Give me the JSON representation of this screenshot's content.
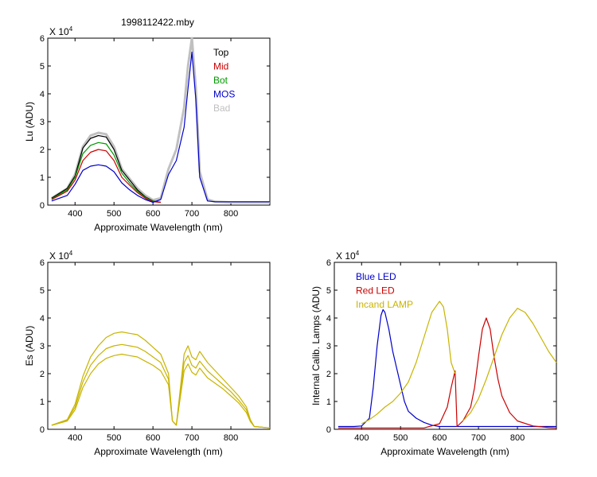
{
  "title": "1998112422.mby",
  "chart_data": [
    {
      "id": "lu",
      "type": "line",
      "title": "1998112422.mby",
      "exponent_label": "X 10",
      "exponent_power": "4",
      "xlabel": "Approximate Wavelength (nm)",
      "ylabel": "Lu (ADU)",
      "xlim": [
        330,
        900
      ],
      "ylim": [
        0,
        6
      ],
      "xticks": [
        "400",
        "500",
        "600",
        "700",
        "800"
      ],
      "yticks": [
        "0",
        "1",
        "2",
        "3",
        "4",
        "5",
        "6"
      ],
      "legend": [
        {
          "label": "Top",
          "color": "#000000"
        },
        {
          "label": "Mid",
          "color": "#cc0000"
        },
        {
          "label": "Bot",
          "color": "#009900"
        },
        {
          "label": "MOS",
          "color": "#0000cc"
        },
        {
          "label": "Bad",
          "color": "#c0c0c0"
        }
      ],
      "series": [
        {
          "name": "Bad",
          "color": "#c0c0c0",
          "x": [
            340,
            380,
            400,
            420,
            440,
            460,
            480,
            500,
            520,
            540,
            560,
            580,
            600,
            620,
            640,
            660,
            680,
            690,
            700,
            710,
            720,
            740,
            760,
            800,
            900
          ],
          "y": [
            0.25,
            0.6,
            1.1,
            2.1,
            2.5,
            2.6,
            2.55,
            2.1,
            1.3,
            0.95,
            0.6,
            0.35,
            0.18,
            0.25,
            1.3,
            2.0,
            3.5,
            5.0,
            6.0,
            4.2,
            1.2,
            0.2,
            0.12,
            0.1,
            0.1
          ]
        },
        {
          "name": "Top",
          "color": "#000000",
          "x": [
            340,
            380,
            400,
            420,
            440,
            460,
            480,
            500,
            520,
            540,
            560,
            580,
            600,
            620
          ],
          "y": [
            0.25,
            0.6,
            1.05,
            2.05,
            2.4,
            2.5,
            2.45,
            2.0,
            1.25,
            0.9,
            0.55,
            0.3,
            0.15,
            0.1
          ]
        },
        {
          "name": "Bot",
          "color": "#009900",
          "x": [
            340,
            380,
            400,
            420,
            440,
            460,
            480,
            500,
            520,
            540,
            560,
            580,
            600,
            620
          ],
          "y": [
            0.22,
            0.55,
            1.0,
            1.85,
            2.15,
            2.25,
            2.2,
            1.8,
            1.15,
            0.8,
            0.5,
            0.28,
            0.14,
            0.1
          ]
        },
        {
          "name": "Mid",
          "color": "#cc0000",
          "x": [
            340,
            380,
            400,
            420,
            440,
            460,
            480,
            500,
            520,
            540,
            560,
            580,
            600,
            620
          ],
          "y": [
            0.2,
            0.5,
            0.9,
            1.6,
            1.9,
            2.0,
            1.95,
            1.6,
            1.0,
            0.72,
            0.45,
            0.25,
            0.12,
            0.1
          ]
        },
        {
          "name": "MOS",
          "color": "#0000cc",
          "x": [
            340,
            380,
            400,
            420,
            440,
            460,
            480,
            500,
            520,
            540,
            560,
            580,
            600,
            620,
            640,
            660,
            680,
            690,
            700,
            710,
            720,
            740,
            760,
            800,
            900
          ],
          "y": [
            0.15,
            0.35,
            0.75,
            1.25,
            1.4,
            1.45,
            1.4,
            1.2,
            0.8,
            0.55,
            0.35,
            0.2,
            0.1,
            0.2,
            1.1,
            1.6,
            2.8,
            4.2,
            5.5,
            3.8,
            1.0,
            0.15,
            0.12,
            0.12,
            0.12
          ]
        }
      ]
    },
    {
      "id": "es",
      "type": "line",
      "exponent_label": "X 10",
      "exponent_power": "4",
      "xlabel": "Approximate Wavelength (nm)",
      "ylabel": "Es  (ADU)",
      "xlim": [
        330,
        900
      ],
      "ylim": [
        0,
        6
      ],
      "xticks": [
        "400",
        "500",
        "600",
        "700",
        "800"
      ],
      "yticks": [
        "0",
        "1",
        "2",
        "3",
        "4",
        "5",
        "6"
      ],
      "series": [
        {
          "color": "#c8b400",
          "x": [
            340,
            380,
            400,
            420,
            440,
            460,
            480,
            500,
            520,
            540,
            560,
            580,
            600,
            620,
            640,
            650,
            660,
            680,
            690,
            700,
            710,
            720,
            740,
            760,
            780,
            800,
            820,
            840,
            850,
            860,
            900
          ],
          "y": [
            0.15,
            0.35,
            0.9,
            1.9,
            2.6,
            3.0,
            3.3,
            3.45,
            3.5,
            3.45,
            3.4,
            3.2,
            2.95,
            2.7,
            2.0,
            0.3,
            0.15,
            2.7,
            3.0,
            2.6,
            2.5,
            2.8,
            2.4,
            2.1,
            1.8,
            1.5,
            1.2,
            0.8,
            0.35,
            0.1,
            0.05
          ]
        },
        {
          "color": "#c8b400",
          "x": [
            340,
            380,
            400,
            420,
            440,
            460,
            480,
            500,
            520,
            540,
            560,
            580,
            600,
            620,
            640,
            650,
            660,
            680,
            690,
            700,
            710,
            720,
            740,
            760,
            780,
            800,
            820,
            840,
            850,
            860,
            900
          ],
          "y": [
            0.15,
            0.33,
            0.8,
            1.7,
            2.3,
            2.65,
            2.9,
            3.0,
            3.05,
            3.0,
            2.95,
            2.8,
            2.6,
            2.4,
            1.8,
            0.3,
            0.15,
            2.4,
            2.65,
            2.3,
            2.2,
            2.45,
            2.1,
            1.85,
            1.6,
            1.35,
            1.05,
            0.7,
            0.3,
            0.1,
            0.05
          ]
        },
        {
          "color": "#c8b400",
          "x": [
            340,
            380,
            400,
            420,
            440,
            460,
            480,
            500,
            520,
            540,
            560,
            580,
            600,
            620,
            640,
            650,
            660,
            680,
            690,
            700,
            710,
            720,
            740,
            760,
            780,
            800,
            820,
            840,
            850,
            860,
            900
          ],
          "y": [
            0.14,
            0.3,
            0.7,
            1.5,
            2.0,
            2.35,
            2.55,
            2.65,
            2.7,
            2.65,
            2.6,
            2.45,
            2.3,
            2.1,
            1.6,
            0.3,
            0.15,
            2.1,
            2.35,
            2.05,
            1.95,
            2.2,
            1.85,
            1.65,
            1.45,
            1.2,
            0.95,
            0.6,
            0.28,
            0.1,
            0.05
          ]
        }
      ]
    },
    {
      "id": "calib",
      "type": "line",
      "exponent_label": "X 10",
      "exponent_power": "4",
      "xlabel": "Approximate Wavelength (nm)",
      "ylabel": "Internal Calib. Lamps (ADU)",
      "xlim": [
        330,
        900
      ],
      "ylim": [
        0,
        6
      ],
      "xticks": [
        "400",
        "500",
        "600",
        "700",
        "800"
      ],
      "yticks": [
        "0",
        "1",
        "2",
        "3",
        "4",
        "5",
        "6"
      ],
      "legend": [
        {
          "label": "Blue LED",
          "color": "#0000cc"
        },
        {
          "label": "Red LED",
          "color": "#cc0000"
        },
        {
          "label": "Incand LAMP",
          "color": "#c8b400"
        }
      ],
      "series": [
        {
          "name": "Blue LED",
          "color": "#0000cc",
          "x": [
            340,
            380,
            400,
            420,
            430,
            440,
            450,
            455,
            460,
            470,
            480,
            490,
            500,
            510,
            520,
            540,
            560,
            580,
            600,
            640,
            700,
            800,
            900
          ],
          "y": [
            0.1,
            0.1,
            0.12,
            0.4,
            1.5,
            3.0,
            4.1,
            4.3,
            4.2,
            3.6,
            2.8,
            2.2,
            1.6,
            1.0,
            0.65,
            0.4,
            0.25,
            0.15,
            0.1,
            0.1,
            0.1,
            0.1,
            0.1
          ]
        },
        {
          "name": "Red LED",
          "color": "#cc0000",
          "x": [
            340,
            500,
            560,
            600,
            620,
            630,
            640,
            645,
            660,
            680,
            690,
            700,
            710,
            720,
            730,
            740,
            750,
            760,
            780,
            800,
            840,
            880,
            900
          ],
          "y": [
            0.05,
            0.05,
            0.05,
            0.2,
            0.8,
            1.5,
            2.1,
            0.1,
            0.3,
            0.8,
            1.5,
            2.6,
            3.6,
            4.0,
            3.6,
            2.6,
            1.8,
            1.2,
            0.6,
            0.3,
            0.12,
            0.06,
            0.05
          ]
        },
        {
          "name": "Incand LAMP",
          "color": "#c8b400",
          "x": [
            400,
            420,
            440,
            460,
            480,
            500,
            520,
            540,
            560,
            580,
            600,
            610,
            620,
            630,
            640
          ],
          "y": [
            0.2,
            0.35,
            0.55,
            0.8,
            1.0,
            1.3,
            1.7,
            2.4,
            3.3,
            4.2,
            4.6,
            4.4,
            3.6,
            2.4,
            2.0
          ]
        },
        {
          "name": "Incand LAMP",
          "color": "#c8b400",
          "x": [
            660,
            680,
            700,
            720,
            740,
            760,
            780,
            800,
            820,
            840,
            860,
            880,
            900
          ],
          "y": [
            0.3,
            0.6,
            1.1,
            1.8,
            2.6,
            3.4,
            4.0,
            4.35,
            4.2,
            3.8,
            3.3,
            2.8,
            2.4
          ]
        }
      ]
    }
  ]
}
